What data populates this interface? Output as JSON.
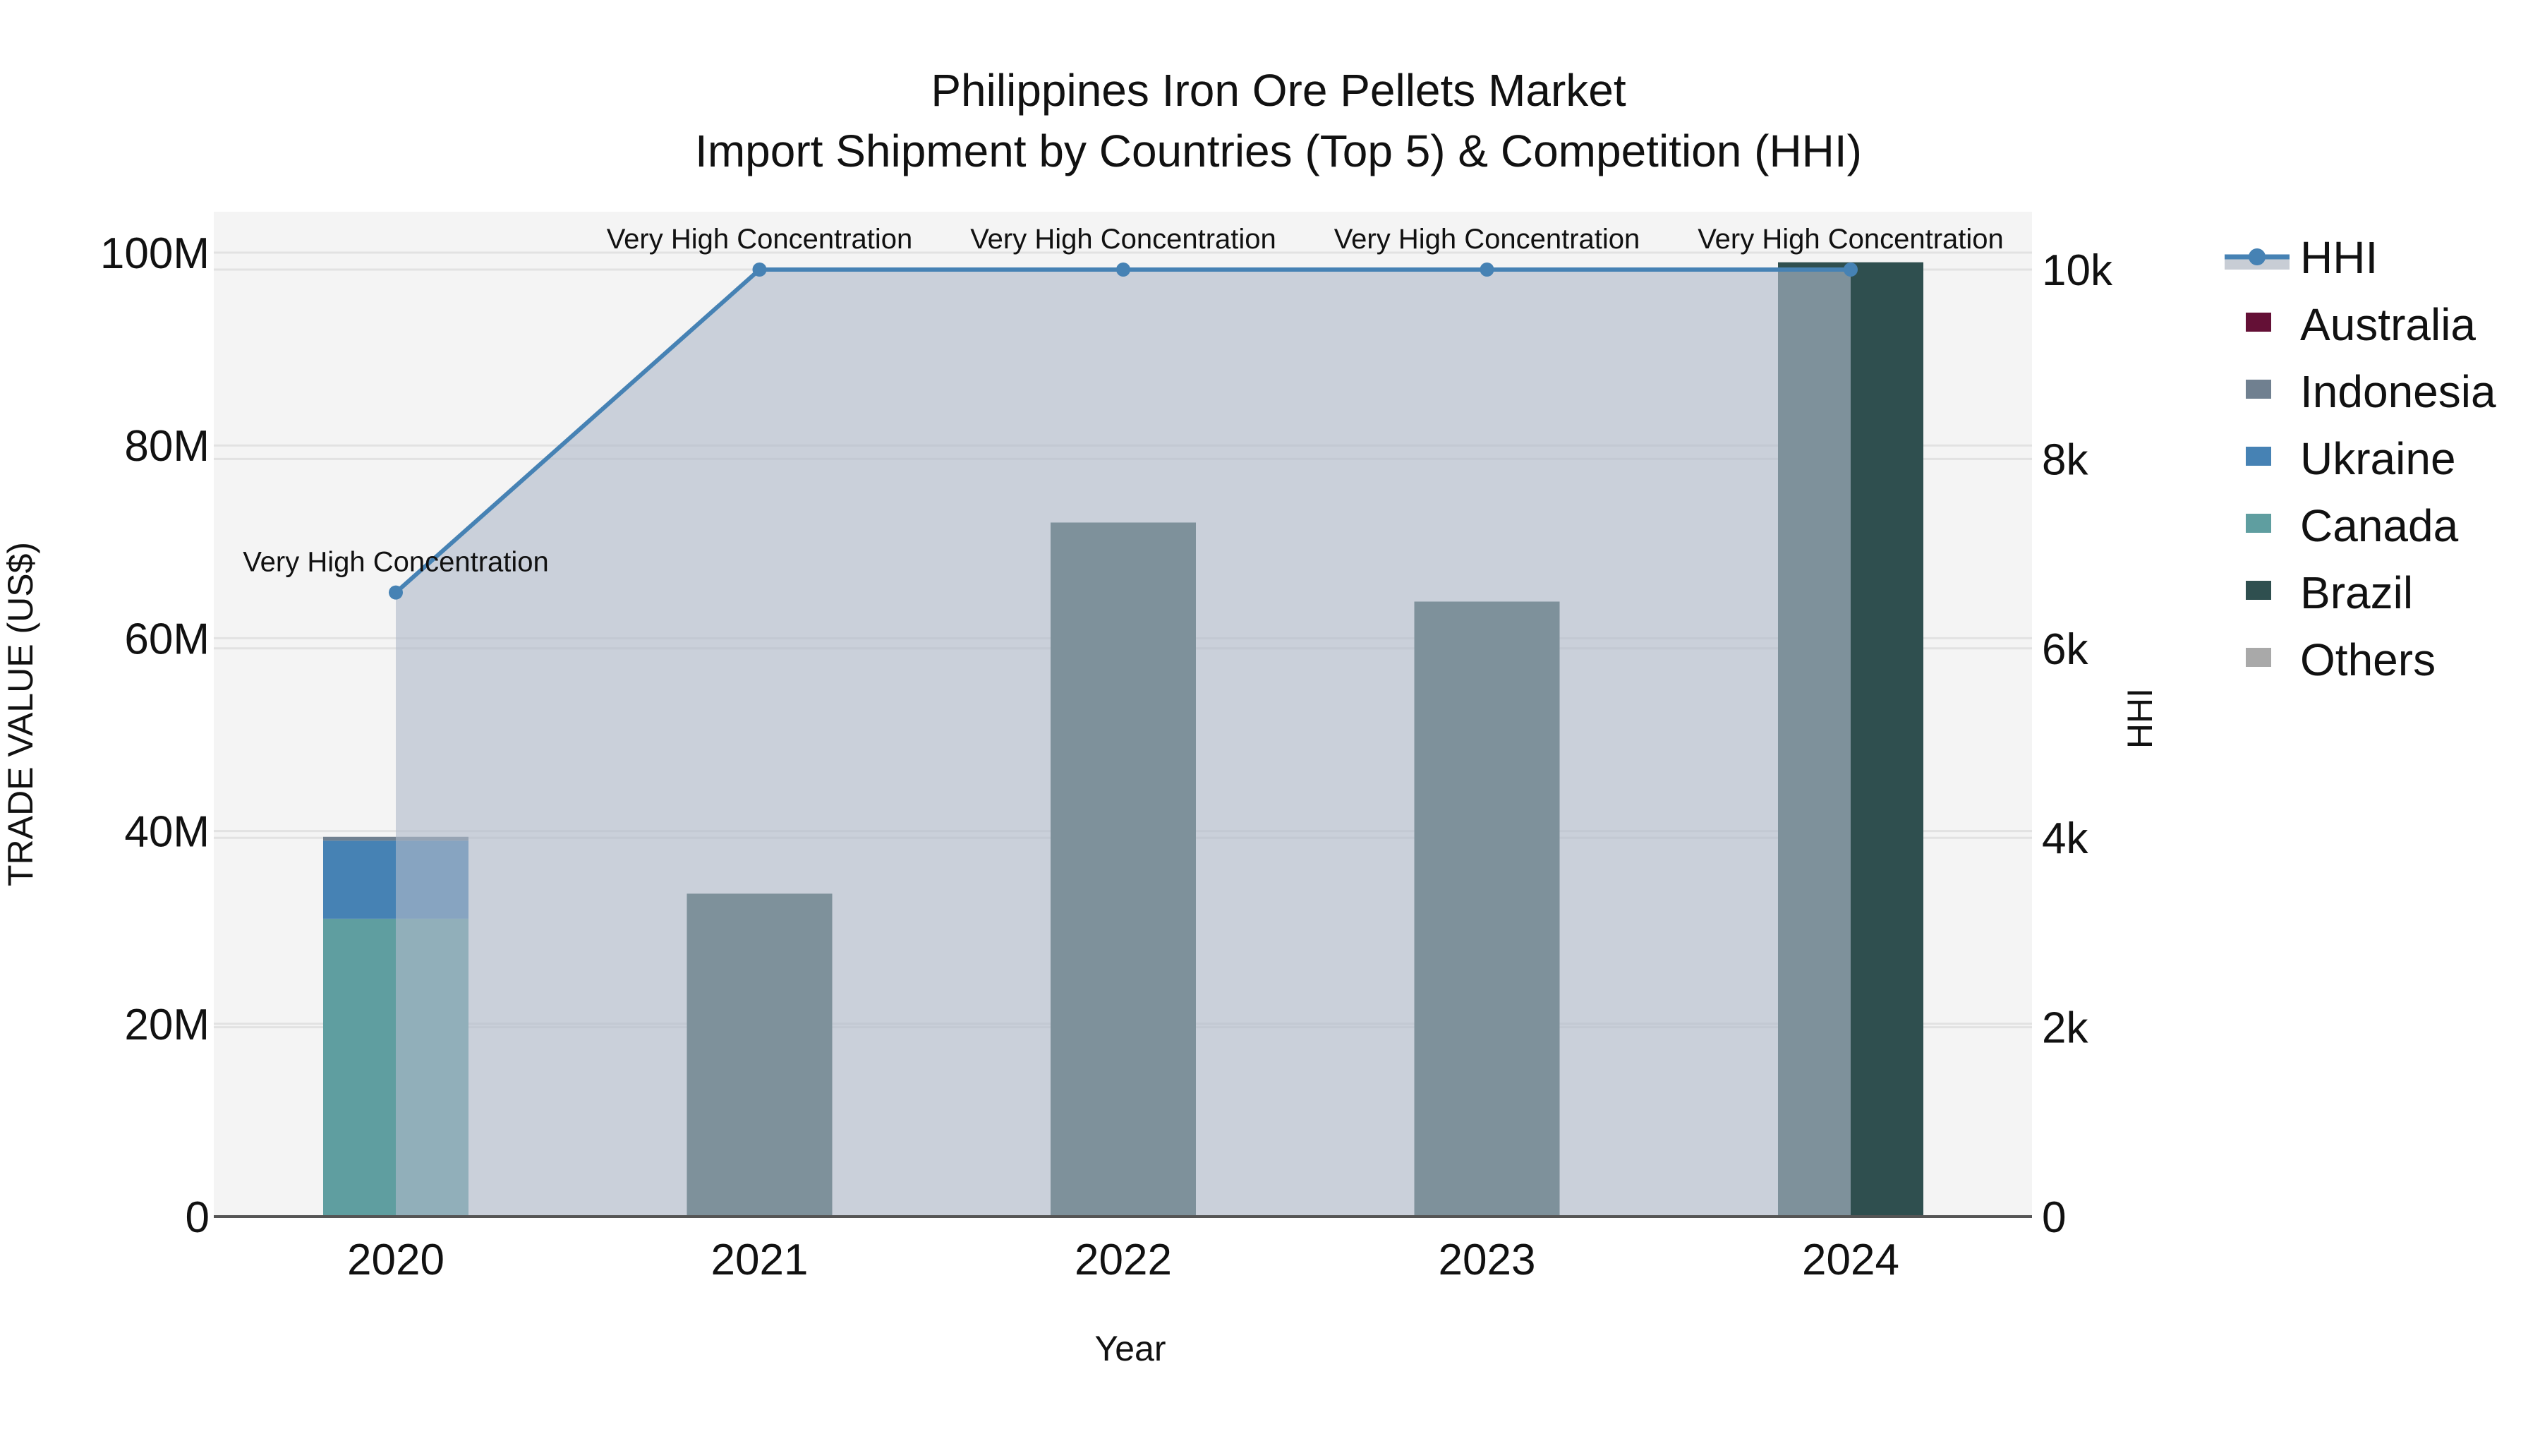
{
  "title": {
    "line1": "Philippines Iron Ore Pellets Market",
    "line2": "Import Shipment by Countries (Top 5) & Competition (HHI)"
  },
  "colors": {
    "plot_bg": "#F4F4F4",
    "grid": "#E2E2E2",
    "axis_line": "#555555",
    "hhi_line": "#4682B4",
    "hhi_fill": "rgba(176,186,201,0.62)",
    "Australia": "#641036",
    "Indonesia": "#708090",
    "Ukraine": "#4682B4",
    "Canada": "#5F9EA0",
    "Brazil": "#2F4F4F",
    "Others": "#A9A9A9"
  },
  "legend": {
    "items": [
      {
        "label": "HHI",
        "type": "line"
      },
      {
        "label": "Australia",
        "type": "box"
      },
      {
        "label": "Indonesia",
        "type": "box"
      },
      {
        "label": "Ukraine",
        "type": "box"
      },
      {
        "label": "Canada",
        "type": "box"
      },
      {
        "label": "Brazil",
        "type": "box"
      },
      {
        "label": "Others",
        "type": "box"
      }
    ]
  },
  "chart_data": {
    "type": "bar",
    "subtype": "stacked bar with HHI line/area on secondary axis",
    "title": "Philippines Iron Ore Pellets Market — Import Shipment by Countries (Top 5) & Competition (HHI)",
    "xlabel": "Year",
    "ylabel": "TRADE VALUE (US$)",
    "y2label": "HHI",
    "categories": [
      "2020",
      "2021",
      "2022",
      "2023",
      "2024"
    ],
    "ylim": [
      0,
      104000000
    ],
    "y2lim": [
      0,
      10400
    ],
    "yticks": [
      {
        "v": 0,
        "label": "0"
      },
      {
        "v": 20000000,
        "label": "20M"
      },
      {
        "v": 40000000,
        "label": "40M"
      },
      {
        "v": 60000000,
        "label": "60M"
      },
      {
        "v": 80000000,
        "label": "80M"
      },
      {
        "v": 100000000,
        "label": "100M"
      }
    ],
    "y2ticks": [
      {
        "v": 0,
        "label": "0"
      },
      {
        "v": 2000,
        "label": "2k"
      },
      {
        "v": 4000,
        "label": "4k"
      },
      {
        "v": 6000,
        "label": "6k"
      },
      {
        "v": 8000,
        "label": "8k"
      },
      {
        "v": 10000,
        "label": "10k"
      }
    ],
    "series": [
      {
        "name": "Canada",
        "values": [
          30900000,
          0,
          0,
          0,
          0
        ]
      },
      {
        "name": "Ukraine",
        "values": [
          8100000,
          0,
          0,
          0,
          0
        ]
      },
      {
        "name": "Indonesia",
        "values": [
          400000,
          0,
          0,
          0,
          0
        ]
      },
      {
        "name": "Australia",
        "values": [
          0,
          0,
          0,
          0,
          0
        ]
      },
      {
        "name": "Brazil",
        "values": [
          0,
          33500000,
          72000000,
          63800000,
          99000000
        ]
      },
      {
        "name": "Others",
        "values": [
          0,
          0,
          0,
          0,
          0
        ]
      }
    ],
    "hhi": {
      "name": "HHI",
      "values": [
        6590,
        10000,
        10000,
        10000,
        10000
      ],
      "annotations": [
        "Very High Concentration",
        "Very High Concentration",
        "Very High Concentration",
        "Very High Concentration",
        "Very High Concentration"
      ]
    },
    "grid": true,
    "legend_position": "right"
  }
}
